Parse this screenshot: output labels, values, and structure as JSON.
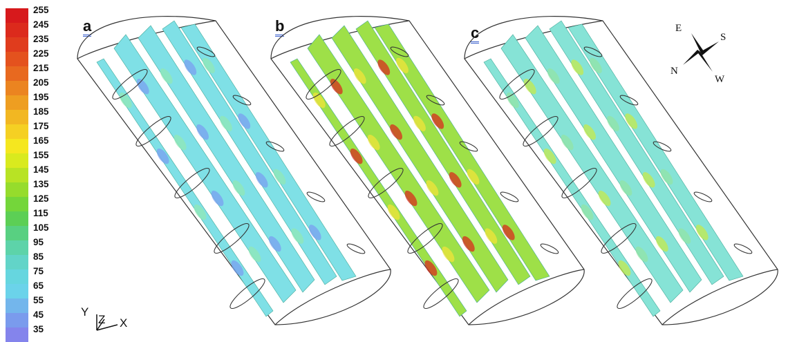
{
  "colorbar": {
    "ticks": [
      "255",
      "245",
      "235",
      "225",
      "215",
      "205",
      "195",
      "185",
      "175",
      "165",
      "155",
      "145",
      "135",
      "125",
      "115",
      "105",
      "95",
      "85",
      "75",
      "65",
      "55",
      "45",
      "35"
    ],
    "colors": [
      "#d7191c",
      "#dc2a1c",
      "#e03c1d",
      "#e4521e",
      "#e8691f",
      "#eb8420",
      "#ee9e21",
      "#f2b722",
      "#f5d023",
      "#f5e71f",
      "#d9ea1e",
      "#b8e324",
      "#96dc2c",
      "#74d63a",
      "#5ccf55",
      "#58d081",
      "#5dd3a9",
      "#62d4c8",
      "#66d6df",
      "#6bd3ea",
      "#73b6ec",
      "#7a9bed",
      "#8484ec"
    ]
  },
  "panels": [
    {
      "label": "a",
      "fill": "#7fe0e6",
      "blob1": "#7aa0f0",
      "blob2": "#90e8b5"
    },
    {
      "label": "b",
      "fill": "#9ee048",
      "blob1": "#d72e1c",
      "blob2": "#f0e43a"
    },
    {
      "label": "c",
      "fill": "#86e3d6",
      "blob1": "#c4ea4c",
      "blob2": "#92e4a6"
    }
  ],
  "axes": {
    "y": "Y",
    "z": "Z",
    "x": "X"
  },
  "compass": {
    "e": "E",
    "s": "S",
    "n": "N",
    "w": "W"
  }
}
